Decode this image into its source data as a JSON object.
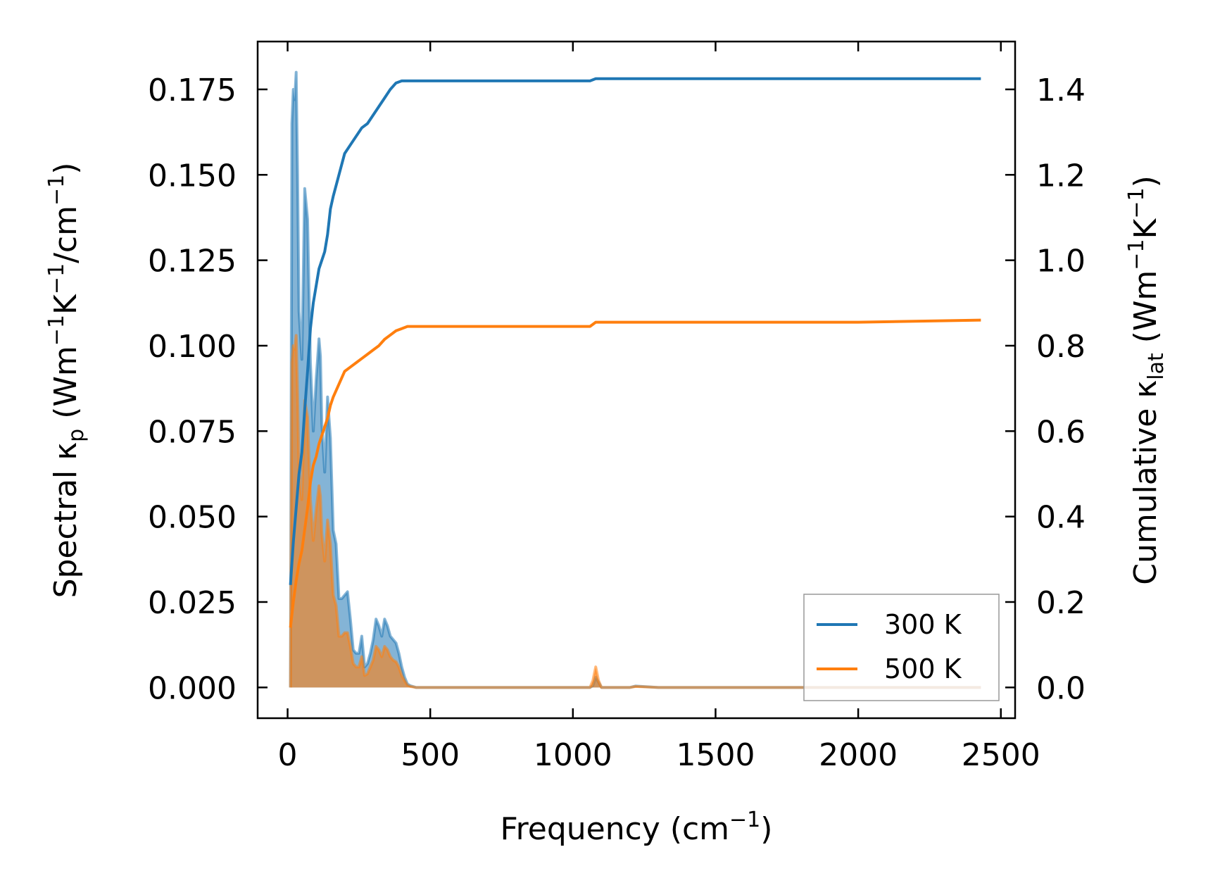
{
  "colors": {
    "series_300": "#1f77b4",
    "series_500": "#ff7f0e",
    "axis": "#000000",
    "legend_border": "#999999"
  },
  "chart_data": {
    "type": "line",
    "xlabel": "Frequency (cm",
    "xlabel_sup": "−1",
    "xlabel_tail": ")",
    "ylabel_left_parts": [
      "Spectral κ",
      "p",
      " (Wm",
      "−1",
      "K",
      "−1",
      "/cm",
      "−1",
      ")"
    ],
    "ylabel_right_parts": [
      "Cumulative κ",
      "lat",
      " (Wm",
      "−1",
      "K",
      "−1",
      ")"
    ],
    "xlim": [
      -105,
      2550
    ],
    "ylim_left": [
      -0.009,
      0.189
    ],
    "ylim_right": [
      -0.072,
      1.512
    ],
    "xticks": [
      0,
      500,
      1000,
      1500,
      2000,
      2500
    ],
    "xtick_labels": [
      "0",
      "500",
      "1000",
      "1500",
      "2000",
      "2500"
    ],
    "yticks_left": [
      0,
      0.025,
      0.05,
      0.075,
      0.1,
      0.125,
      0.15,
      0.175
    ],
    "ytick_labels_left": [
      "0.000",
      "0.025",
      "0.050",
      "0.075",
      "0.100",
      "0.125",
      "0.150",
      "0.175"
    ],
    "yticks_right": [
      0,
      0.2,
      0.4,
      0.6,
      0.8,
      1.0,
      1.2,
      1.4
    ],
    "ytick_labels_right": [
      "0.0",
      "0.2",
      "0.4",
      "0.6",
      "0.8",
      "1.0",
      "1.2",
      "1.4"
    ],
    "legend": {
      "location": "lower-right",
      "entries": [
        "300 K",
        "500 K"
      ]
    },
    "spectral_series": [
      {
        "name": "300 K",
        "axis": "left",
        "x": [
          10,
          15,
          20,
          25,
          30,
          35,
          40,
          50,
          60,
          70,
          80,
          90,
          100,
          110,
          115,
          120,
          130,
          140,
          150,
          160,
          170,
          180,
          190,
          200,
          210,
          220,
          230,
          240,
          250,
          260,
          270,
          280,
          290,
          300,
          310,
          320,
          330,
          340,
          350,
          360,
          370,
          380,
          390,
          400,
          410,
          420,
          430,
          450,
          500,
          1000,
          1060,
          1070,
          1080,
          1090,
          1100,
          1200,
          1220,
          1300,
          2000,
          2400,
          2430
        ],
        "y": [
          0,
          0.165,
          0.175,
          0.172,
          0.18,
          0.15,
          0.11,
          0.096,
          0.146,
          0.137,
          0.095,
          0.075,
          0.09,
          0.102,
          0.097,
          0.077,
          0.063,
          0.085,
          0.073,
          0.046,
          0.042,
          0.026,
          0.026,
          0.027,
          0.028,
          0.02,
          0.011,
          0.01,
          0.01,
          0.015,
          0.006,
          0.007,
          0.01,
          0.014,
          0.02,
          0.018,
          0.015,
          0.02,
          0.018,
          0.015,
          0.014,
          0.013,
          0.01,
          0.006,
          0.003,
          0.001,
          0.0005,
          0,
          0,
          0,
          0,
          0.0005,
          0.003,
          0.0015,
          0,
          0,
          0.0004,
          0,
          0,
          0,
          0
        ]
      },
      {
        "name": "500 K",
        "axis": "left",
        "x": [
          10,
          15,
          20,
          25,
          30,
          35,
          40,
          50,
          60,
          70,
          80,
          90,
          100,
          110,
          115,
          120,
          130,
          140,
          150,
          160,
          170,
          180,
          190,
          200,
          210,
          220,
          230,
          240,
          250,
          260,
          270,
          280,
          290,
          300,
          310,
          320,
          330,
          340,
          350,
          360,
          370,
          380,
          390,
          400,
          410,
          420,
          430,
          450,
          500,
          1000,
          1060,
          1070,
          1080,
          1090,
          1100,
          1200,
          1220,
          1300,
          2000,
          2400,
          2430
        ],
        "y": [
          0,
          0.095,
          0.1,
          0.099,
          0.103,
          0.086,
          0.063,
          0.055,
          0.084,
          0.079,
          0.055,
          0.043,
          0.052,
          0.059,
          0.056,
          0.045,
          0.037,
          0.049,
          0.042,
          0.027,
          0.024,
          0.015,
          0.015,
          0.016,
          0.016,
          0.012,
          0.007,
          0.006,
          0.006,
          0.009,
          0.0035,
          0.004,
          0.006,
          0.008,
          0.012,
          0.011,
          0.009,
          0.012,
          0.011,
          0.009,
          0.008,
          0.0075,
          0.006,
          0.0035,
          0.002,
          0.0006,
          0.0003,
          0,
          0,
          0,
          0,
          0.002,
          0.006,
          0.002,
          0,
          0,
          0.0003,
          0,
          0,
          0,
          0
        ]
      }
    ],
    "cumulative_series": [
      {
        "name": "300 K",
        "axis": "right",
        "x": [
          10,
          20,
          30,
          40,
          50,
          60,
          70,
          80,
          90,
          100,
          110,
          120,
          130,
          140,
          150,
          160,
          180,
          200,
          220,
          240,
          260,
          280,
          300,
          320,
          340,
          360,
          380,
          400,
          420,
          450,
          500,
          1000,
          1060,
          1080,
          1100,
          1200,
          1500,
          2000,
          2430
        ],
        "y": [
          0.24,
          0.34,
          0.42,
          0.5,
          0.55,
          0.65,
          0.74,
          0.84,
          0.9,
          0.94,
          0.98,
          1.0,
          1.02,
          1.06,
          1.12,
          1.15,
          1.2,
          1.25,
          1.27,
          1.29,
          1.31,
          1.32,
          1.34,
          1.36,
          1.38,
          1.4,
          1.415,
          1.42,
          1.42,
          1.42,
          1.42,
          1.42,
          1.42,
          1.425,
          1.425,
          1.425,
          1.425,
          1.425,
          1.425
        ]
      },
      {
        "name": "500 K",
        "axis": "right",
        "x": [
          10,
          20,
          30,
          40,
          50,
          60,
          70,
          80,
          90,
          100,
          110,
          120,
          130,
          140,
          150,
          160,
          180,
          200,
          220,
          240,
          260,
          280,
          300,
          320,
          340,
          360,
          380,
          400,
          420,
          450,
          500,
          1000,
          1060,
          1080,
          1100,
          1200,
          1500,
          2000,
          2430
        ],
        "y": [
          0.14,
          0.2,
          0.25,
          0.29,
          0.32,
          0.37,
          0.42,
          0.48,
          0.52,
          0.54,
          0.57,
          0.59,
          0.61,
          0.63,
          0.66,
          0.68,
          0.71,
          0.74,
          0.75,
          0.76,
          0.77,
          0.78,
          0.79,
          0.8,
          0.815,
          0.825,
          0.835,
          0.84,
          0.845,
          0.845,
          0.845,
          0.845,
          0.845,
          0.855,
          0.855,
          0.855,
          0.855,
          0.855,
          0.86
        ]
      }
    ]
  }
}
